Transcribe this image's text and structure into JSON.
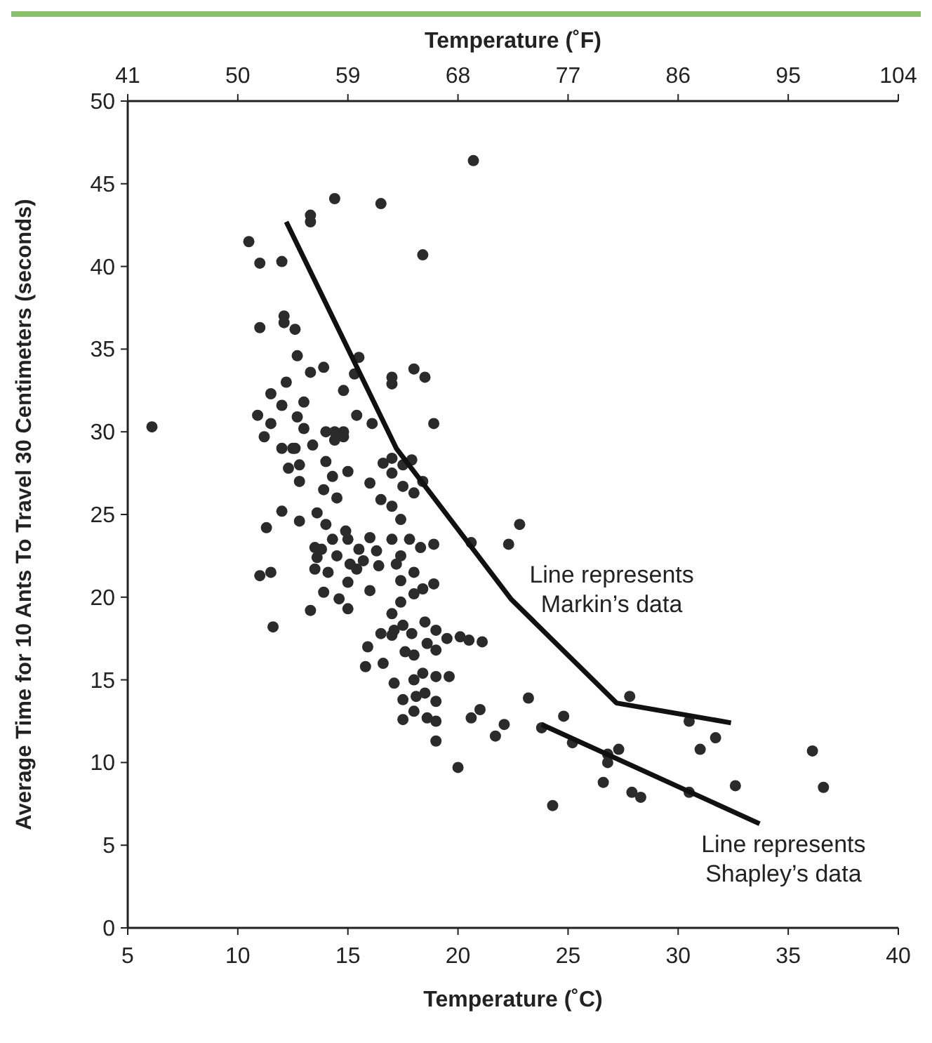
{
  "chart_data": {
    "type": "scatter",
    "xlabel": "Temperature (˚C)",
    "ylabel": "Average Time for 10 Ants To Travel 30 Centimeters (seconds)",
    "x2label": "Temperature (˚F)",
    "xlim": [
      5,
      40
    ],
    "xticks": [
      5,
      10,
      15,
      20,
      25,
      30,
      35,
      40
    ],
    "ylim": [
      0,
      50
    ],
    "yticks": [
      0,
      5,
      10,
      15,
      20,
      25,
      30,
      35,
      40,
      45,
      50
    ],
    "x2lim": [
      41,
      104
    ],
    "x2ticks": [
      41,
      50,
      59,
      68,
      77,
      86,
      95,
      104
    ],
    "grid": false,
    "series": [
      {
        "marker": "circle",
        "color": "#2b2b2b",
        "x": [
          6.1,
          10.5,
          11,
          11,
          10.9,
          11.2,
          11,
          11.5,
          11.6,
          11.3,
          11.5,
          11.5,
          12,
          12.1,
          12.1,
          12.2,
          12,
          12,
          12.3,
          12,
          12.5,
          12.6,
          12.7,
          12.7,
          12.6,
          12.8,
          12.8,
          12.8,
          13,
          13,
          13.3,
          13.3,
          13.3,
          13.4,
          13.6,
          13.5,
          13.6,
          13.3,
          13.5,
          13.9,
          14,
          14,
          13.9,
          14,
          13.8,
          14.1,
          13.9,
          14.4,
          14.4,
          14.4,
          14.3,
          14.5,
          14.3,
          14.5,
          14.6,
          14.8,
          14.8,
          14.8,
          15,
          14.9,
          15,
          15.1,
          15,
          15,
          15.5,
          15.3,
          15.4,
          15.5,
          15.4,
          15.7,
          15.8,
          15.9,
          16,
          16,
          16,
          16.1,
          16.5,
          16.5,
          16.3,
          16.4,
          16.5,
          16.6,
          16.6,
          17,
          17,
          17,
          17,
          17,
          17,
          17,
          17.1,
          17,
          17.1,
          17.2,
          17.5,
          17.5,
          17.4,
          17.4,
          17.4,
          17.4,
          17.5,
          17.6,
          17.5,
          17.5,
          18,
          17.9,
          18,
          17.8,
          18,
          18,
          17.9,
          18,
          18,
          18.1,
          18,
          18.4,
          18.5,
          18.4,
          18.3,
          18.4,
          18.5,
          18.6,
          18.4,
          18.5,
          18.6,
          18.9,
          18.9,
          18.9,
          19,
          19,
          19,
          19,
          19,
          19,
          19.5,
          19.6,
          20,
          20.1,
          20.7,
          20.6,
          20.5,
          20.6,
          21.1,
          21,
          21.7,
          22.1,
          22.3,
          22.8,
          23.2,
          23.8,
          24.3,
          24.8,
          25.2,
          26.6,
          26.8,
          26.8,
          27.3,
          27.8,
          27.9,
          28.3,
          30.5,
          30.5,
          31,
          31.7,
          32.6,
          36.1,
          36.6
        ],
        "values": [
          30.3,
          41.5,
          40.2,
          36.3,
          31,
          29.7,
          21.3,
          21.5,
          18.2,
          24.2,
          32.3,
          30.5,
          40.3,
          37,
          36.6,
          33,
          31.6,
          29,
          27.8,
          25.2,
          29,
          36.2,
          34.6,
          30.9,
          29,
          28,
          27,
          24.6,
          30.2,
          31.8,
          43.1,
          42.7,
          33.6,
          29.2,
          25.1,
          23,
          22.4,
          19.2,
          21.7,
          33.9,
          30,
          28.2,
          26.5,
          24.4,
          22.9,
          21.5,
          20.3,
          44.1,
          30,
          29.5,
          27.3,
          26,
          23.5,
          22.5,
          19.9,
          32.5,
          30,
          29.7,
          27.6,
          24,
          23.5,
          22,
          20.9,
          19.3,
          34.5,
          33.5,
          31,
          22.9,
          21.7,
          22.2,
          15.8,
          17,
          20.4,
          23.6,
          26.9,
          30.5,
          43.8,
          25.9,
          22.8,
          21.9,
          17.8,
          16,
          28.1,
          33.3,
          32.9,
          28.4,
          27.5,
          25.5,
          23.5,
          19,
          18,
          17.7,
          14.8,
          22,
          28,
          26.7,
          24.7,
          22.5,
          21,
          19.7,
          18.3,
          16.7,
          13.8,
          12.6,
          33.8,
          28.3,
          26.3,
          23.5,
          21.5,
          20.2,
          17.8,
          16.5,
          15,
          14,
          13.1,
          40.7,
          33.3,
          27,
          23,
          20.5,
          18.5,
          17.2,
          15.4,
          14.2,
          12.7,
          30.5,
          23.2,
          20.8,
          18,
          16.8,
          15.2,
          13.7,
          12.5,
          11.3,
          17.5,
          15.2,
          9.7,
          17.6,
          46.4,
          23.3,
          17.4,
          12.7,
          17.3,
          13.2,
          11.6,
          12.3,
          23.2,
          24.4,
          13.9,
          12.1,
          7.4,
          12.8,
          11.2,
          8.8,
          10.5,
          10,
          10.8,
          14,
          8.2,
          7.9,
          8.2,
          12.5,
          10.8,
          11.5,
          8.6,
          10.7,
          8.5
        ]
      },
      {
        "type": "line",
        "name": "Line represents\nMarkin’s data",
        "color": "#111111",
        "x": [
          12.2,
          17.2,
          22.4,
          27.2,
          32.4
        ],
        "values": [
          42.7,
          29,
          19.9,
          13.6,
          12.4
        ]
      },
      {
        "type": "line",
        "name": "Line represents\nShapley’s data",
        "color": "#111111",
        "x": [
          23.8,
          33.7
        ],
        "values": [
          12.3,
          6.3
        ]
      }
    ]
  }
}
